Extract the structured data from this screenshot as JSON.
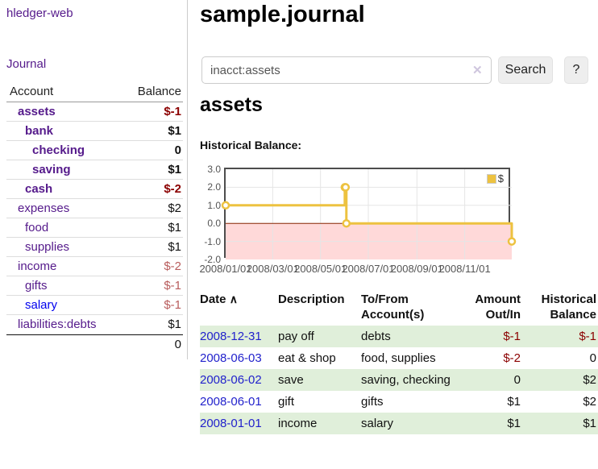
{
  "app": {
    "title": "hledger-web"
  },
  "sidebar": {
    "journal_label": "Journal",
    "accounts_table": {
      "col_account": "Account",
      "col_balance": "Balance",
      "rows": [
        {
          "name": "assets",
          "level": 1,
          "bold": true,
          "balance": "$-1",
          "neg": "strong",
          "link": "purple"
        },
        {
          "name": "bank",
          "level": 2,
          "bold": true,
          "balance": "$1",
          "neg": "none",
          "link": "purple"
        },
        {
          "name": "checking",
          "level": 3,
          "bold": true,
          "balance": "0",
          "neg": "none",
          "link": "purple"
        },
        {
          "name": "saving",
          "level": 3,
          "bold": true,
          "balance": "$1",
          "neg": "none",
          "link": "purple"
        },
        {
          "name": "cash",
          "level": 2,
          "bold": true,
          "balance": "$-2",
          "neg": "strong",
          "link": "purple"
        },
        {
          "name": "expenses",
          "level": 1,
          "bold": false,
          "balance": "$2",
          "neg": "none",
          "link": "purple"
        },
        {
          "name": "food",
          "level": 2,
          "bold": false,
          "balance": "$1",
          "neg": "none",
          "link": "purple"
        },
        {
          "name": "supplies",
          "level": 2,
          "bold": false,
          "balance": "$1",
          "neg": "none",
          "link": "purple"
        },
        {
          "name": "income",
          "level": 1,
          "bold": false,
          "balance": "$-2",
          "neg": "soft",
          "link": "purple"
        },
        {
          "name": "gifts",
          "level": 2,
          "bold": false,
          "balance": "$-1",
          "neg": "soft",
          "link": "purple"
        },
        {
          "name": "salary",
          "level": 2,
          "bold": false,
          "balance": "$-1",
          "neg": "soft",
          "link": "blue"
        },
        {
          "name": "liabilities:debts",
          "level": 1,
          "bold": false,
          "balance": "$1",
          "neg": "none",
          "link": "purple"
        }
      ],
      "total": "0"
    }
  },
  "main": {
    "page_title": "sample.journal",
    "search": {
      "value": "inacct:assets",
      "clear_icon": "✕",
      "button_label": "Search",
      "help_label": "?"
    },
    "account_heading": "assets",
    "chart_label": "Historical Balance:"
  },
  "chart_data": {
    "type": "line",
    "title": "Historical Balance:",
    "step": true,
    "series": [
      {
        "name": "$",
        "color": "#edc240",
        "points": [
          [
            "2008-01-01",
            1
          ],
          [
            "2008-06-01",
            2
          ],
          [
            "2008-06-02",
            2
          ],
          [
            "2008-06-03",
            0
          ],
          [
            "2008-12-31",
            -1
          ]
        ]
      }
    ],
    "x_range": [
      "2008-01-01",
      "2008-12-31"
    ],
    "x_ticks": [
      "2008/01/01",
      "2008/03/01",
      "2008/05/01",
      "2008/07/01",
      "2008/09/01",
      "2008/11/01"
    ],
    "y_ticks": [
      "3.0",
      "2.0",
      "1.0",
      "0.0",
      "-1.0",
      "-2.0"
    ],
    "ylim": [
      -2,
      3
    ],
    "grid": true,
    "legend_position": "top-right",
    "negative_region_color": "#ffd9d9",
    "zero_line_color": "#8b2500",
    "grid_color": "#e5e5e5"
  },
  "register": {
    "headers": {
      "date": "Date",
      "sort_icon": "∧",
      "description": "Description",
      "accounts": "To/From Account(s)",
      "amount": "Amount Out/In",
      "balance": "Historical Balance"
    },
    "rows": [
      {
        "date": "2008-12-31",
        "description": "pay off",
        "accounts": "debts",
        "amount": "$-1",
        "amount_neg": true,
        "balance": "$-1",
        "balance_neg": true,
        "stripe": true
      },
      {
        "date": "2008-06-03",
        "description": "eat & shop",
        "accounts": "food, supplies",
        "amount": "$-2",
        "amount_neg": true,
        "balance": "0",
        "balance_neg": false,
        "stripe": false
      },
      {
        "date": "2008-06-02",
        "description": "save",
        "accounts": "saving, checking",
        "amount": "0",
        "amount_neg": false,
        "balance": "$2",
        "balance_neg": false,
        "stripe": true
      },
      {
        "date": "2008-06-01",
        "description": "gift",
        "accounts": "gifts",
        "amount": "$1",
        "amount_neg": false,
        "balance": "$2",
        "balance_neg": false,
        "stripe": false
      },
      {
        "date": "2008-01-01",
        "description": "income",
        "accounts": "salary",
        "amount": "$1",
        "amount_neg": false,
        "balance": "$1",
        "balance_neg": false,
        "stripe": true
      }
    ]
  },
  "colors": {
    "link_purple": "#551a8b",
    "link_blue": "#0000ee",
    "negative_strong": "#8b0000",
    "negative_soft": "#b85c5c",
    "stripe_green": "#e0efda",
    "series_gold": "#edc240"
  }
}
